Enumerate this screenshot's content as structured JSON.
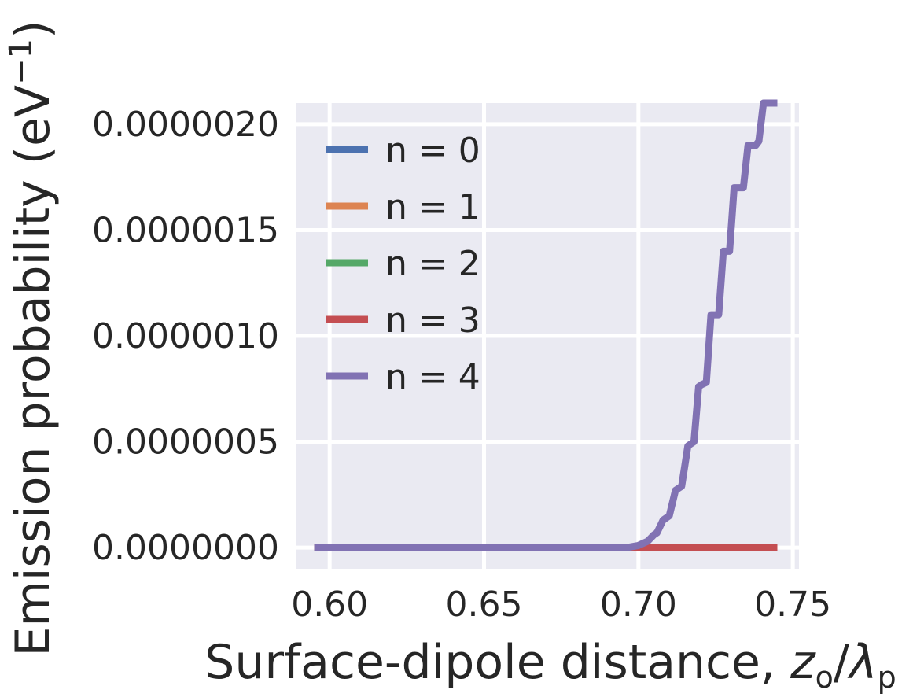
{
  "chart_data": {
    "type": "line",
    "xlabel": "Surface-dipole distance, zₒ/λₚ",
    "xlabel_parts": {
      "text": "Surface-dipole distance, ",
      "var": "z",
      "var_sub": "o",
      "slash": "/",
      "var2": "λ",
      "var2_sub": "p"
    },
    "ylabel": "Emission probability (eV⁻¹)",
    "ylabel_parts": {
      "text": "Emission probability (eV",
      "sup": "−1",
      "close": ")"
    },
    "xlim": [
      0.589,
      0.752
    ],
    "ylim": [
      -1e-07,
      2.1e-06
    ],
    "xticks": [
      0.6,
      0.65,
      0.7,
      0.75
    ],
    "xtick_labels": [
      "0.60",
      "0.65",
      "0.70",
      "0.75"
    ],
    "yticks": [
      0.0,
      5e-07,
      1e-06,
      1.5e-06,
      2e-06
    ],
    "ytick_labels": [
      "0.0000000",
      "0.0000005",
      "0.0000010",
      "0.0000015",
      "0.0000020"
    ],
    "grid": true,
    "legend_position": "upper-left",
    "colors": {
      "background": "#EAEAF2",
      "grid": "#FFFFFF",
      "text": "#262626"
    },
    "series": [
      {
        "name": "n = 0",
        "color": "#4C72B0",
        "x": [
          0.595,
          0.745
        ],
        "y": [
          0.0,
          0.0
        ]
      },
      {
        "name": "n = 1",
        "color": "#DD8452",
        "x": [
          0.595,
          0.745
        ],
        "y": [
          0.0,
          0.0
        ]
      },
      {
        "name": "n = 2",
        "color": "#55A868",
        "x": [
          0.595,
          0.745
        ],
        "y": [
          0.0,
          0.0
        ]
      },
      {
        "name": "n = 3",
        "color": "#C44E52",
        "x": [
          0.595,
          0.745
        ],
        "y": [
          0.0,
          0.0
        ]
      },
      {
        "name": "n = 4",
        "color": "#8172B3",
        "x": [
          0.595,
          0.65,
          0.69,
          0.697,
          0.7,
          0.703,
          0.705,
          0.706,
          0.708,
          0.709,
          0.71,
          0.712,
          0.713,
          0.714,
          0.716,
          0.717,
          0.718,
          0.7195,
          0.7205,
          0.722,
          0.7235,
          0.7245,
          0.726,
          0.7275,
          0.7285,
          0.7295,
          0.731,
          0.733,
          0.734,
          0.7355,
          0.737,
          0.738,
          0.739,
          0.7405,
          0.741,
          0.745
        ],
        "y": [
          0.0,
          0.0,
          0.0,
          2e-09,
          1e-08,
          3e-08,
          6e-08,
          7e-08,
          1.3e-07,
          1.4e-07,
          1.5e-07,
          2.7e-07,
          2.8e-07,
          2.9e-07,
          4.8e-07,
          4.9e-07,
          5e-07,
          7.6e-07,
          7.7e-07,
          7.8e-07,
          1.1e-06,
          1.1e-06,
          1.1e-06,
          1.4e-06,
          1.4e-06,
          1.4e-06,
          1.7e-06,
          1.7e-06,
          1.7e-06,
          1.9e-06,
          1.9e-06,
          1.9e-06,
          1.92e-06,
          2.1e-06,
          2.1e-06,
          2.1e-06
        ]
      }
    ]
  }
}
